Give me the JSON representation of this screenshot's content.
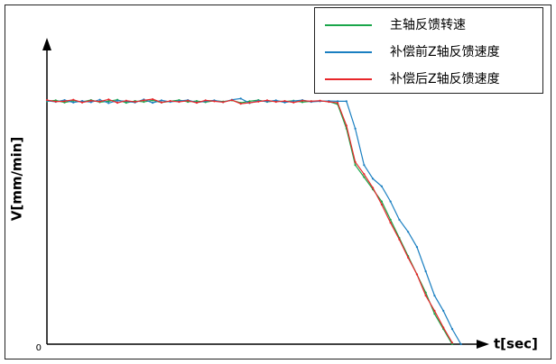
{
  "chart_data": {
    "type": "line",
    "x_label": "t[sec]",
    "y_label": "V[mm/min]",
    "x": [
      0,
      2,
      4,
      6,
      8,
      10,
      12,
      14,
      16,
      18,
      20,
      22,
      24,
      26,
      28,
      30,
      32,
      34,
      36,
      38,
      40,
      42,
      44,
      46,
      48,
      50,
      52,
      54,
      56,
      58,
      60,
      62,
      64,
      66,
      68,
      70,
      72,
      74,
      76,
      78,
      80,
      82,
      84,
      86,
      88,
      90,
      92,
      94
    ],
    "series": [
      {
        "name": "主轴反馈转速",
        "color": "#1aa64a",
        "values": [
          80,
          80.3,
          79.6,
          80.2,
          79.8,
          80.4,
          79.7,
          80,
          80.5,
          79.5,
          80.1,
          79.8,
          80.3,
          79.6,
          80,
          80.4,
          79.8,
          80.1,
          79.7,
          80.2,
          79.9,
          80.3,
          79.5,
          80,
          80.4,
          79.8,
          80.1,
          79.9,
          80.2,
          79.7,
          80,
          80.1,
          79.9,
          79,
          71,
          59,
          55,
          51,
          47,
          41,
          35,
          29,
          23,
          17,
          10,
          5,
          0,
          null
        ]
      },
      {
        "name": "补偿前Z轴反馈速度",
        "color": "#1a7fc1",
        "values": [
          80.2,
          79.8,
          80.4,
          79.6,
          80.1,
          79.7,
          80.5,
          79.4,
          80.2,
          80,
          79.6,
          80.6,
          79.5,
          80.3,
          79.8,
          80.1,
          80.4,
          79.6,
          80,
          80.3,
          79.7,
          80.5,
          80.9,
          79.4,
          80.2,
          79.9,
          80.3,
          79.6,
          80.1,
          80.4,
          79.8,
          80,
          80.1,
          80,
          80,
          71,
          59,
          54.5,
          52,
          47,
          41,
          37,
          32,
          24,
          16,
          11,
          5,
          0
        ]
      },
      {
        "name": "补偿后Z轴反馈速度",
        "color": "#e8262a",
        "values": [
          80.4,
          79.9,
          80,
          80.5,
          79.6,
          80.2,
          79.9,
          80.6,
          79.5,
          80.2,
          79.8,
          80.3,
          80.7,
          79.6,
          80.1,
          79.8,
          80.2,
          79.5,
          80.3,
          80,
          79.7,
          80.4,
          79.2,
          79.5,
          79.9,
          80.3,
          79.8,
          80.1,
          79.6,
          80.2,
          80,
          80.2,
          79.8,
          79.5,
          72,
          60,
          56,
          51.5,
          46,
          40,
          34.5,
          28.5,
          23,
          16,
          11,
          5.5,
          0.5,
          null
        ]
      }
    ],
    "xlim": [
      0,
      100
    ],
    "ylim": [
      0,
      100
    ],
    "yticks": [
      0
    ],
    "grid": false
  }
}
